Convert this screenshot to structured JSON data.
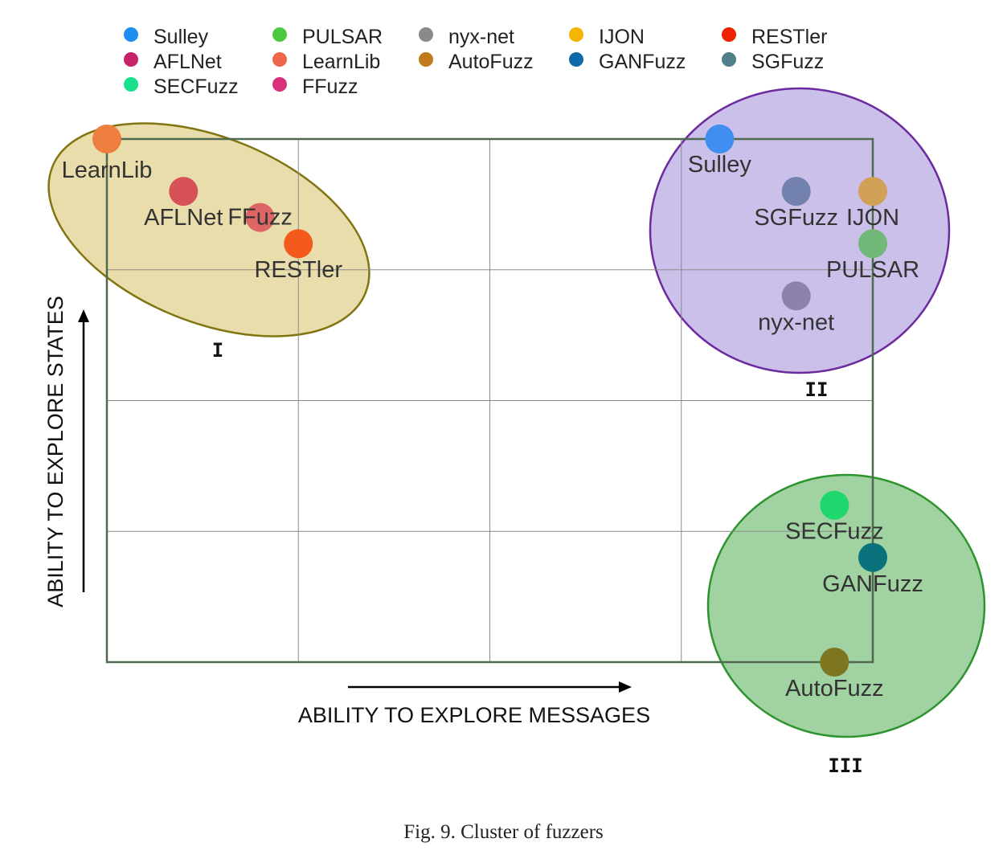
{
  "chart_data": {
    "type": "scatter",
    "xlabel": "ABILITY TO EXPLORE MESSAGES",
    "ylabel": "ABILITY TO EXPLORE STATES",
    "xlim": [
      0,
      4
    ],
    "ylim": [
      0,
      4
    ],
    "grid": true,
    "legend_position": "top",
    "legend": [
      {
        "name": "Sulley",
        "color": "#1f8ef1"
      },
      {
        "name": "PULSAR",
        "color": "#4cc940"
      },
      {
        "name": "nyx-net",
        "color": "#8a8a8a"
      },
      {
        "name": "IJON",
        "color": "#f5b400"
      },
      {
        "name": "RESTler",
        "color": "#ee2200"
      },
      {
        "name": "AFLNet",
        "color": "#c8236a"
      },
      {
        "name": "LearnLib",
        "color": "#f0664a"
      },
      {
        "name": "AutoFuzz",
        "color": "#c07a1a"
      },
      {
        "name": "GANFuzz",
        "color": "#0e6aa8"
      },
      {
        "name": "SGFuzz",
        "color": "#4f7f88"
      },
      {
        "name": "SECFuzz",
        "color": "#19e08a"
      },
      {
        "name": "FFuzz",
        "color": "#d8307a"
      }
    ],
    "series": [
      {
        "name": "LearnLib",
        "x": 0.0,
        "y": 4.0,
        "color": "#ef7f40"
      },
      {
        "name": "AFLNet",
        "x": 0.4,
        "y": 3.6,
        "color": "#d65258"
      },
      {
        "name": "FFuzz",
        "x": 0.8,
        "y": 3.4,
        "color": "#de6666"
      },
      {
        "name": "RESTler",
        "x": 1.0,
        "y": 3.2,
        "color": "#f35a1c"
      },
      {
        "name": "Sulley",
        "x": 3.2,
        "y": 4.0,
        "color": "#3f8ef0"
      },
      {
        "name": "SGFuzz",
        "x": 3.6,
        "y": 3.6,
        "color": "#7281ae"
      },
      {
        "name": "IJON",
        "x": 4.0,
        "y": 3.6,
        "color": "#d2a158"
      },
      {
        "name": "PULSAR",
        "x": 4.0,
        "y": 3.2,
        "color": "#72b878"
      },
      {
        "name": "nyx-net",
        "x": 3.6,
        "y": 2.8,
        "color": "#8c82ac"
      },
      {
        "name": "SECFuzz",
        "x": 3.8,
        "y": 1.2,
        "color": "#1ed86e"
      },
      {
        "name": "GANFuzz",
        "x": 4.0,
        "y": 0.8,
        "color": "#0a727c"
      },
      {
        "name": "AutoFuzz",
        "x": 3.8,
        "y": 0.0,
        "color": "#7d7520"
      }
    ],
    "clusters": [
      {
        "label": "I",
        "members": [
          "LearnLib",
          "AFLNet",
          "FFuzz",
          "RESTler"
        ],
        "fill": "#e2d08c",
        "stroke": "#807510"
      },
      {
        "label": "II",
        "members": [
          "Sulley",
          "SGFuzz",
          "IJON",
          "PULSAR",
          "nyx-net"
        ],
        "fill": "#b7a8e2",
        "stroke": "#6d2a9e"
      },
      {
        "label": "III",
        "members": [
          "SECFuzz",
          "GANFuzz",
          "AutoFuzz"
        ],
        "fill": "#7cc07e",
        "stroke": "#2e9430"
      }
    ]
  },
  "caption": "Fig. 9.  Cluster of fuzzers"
}
